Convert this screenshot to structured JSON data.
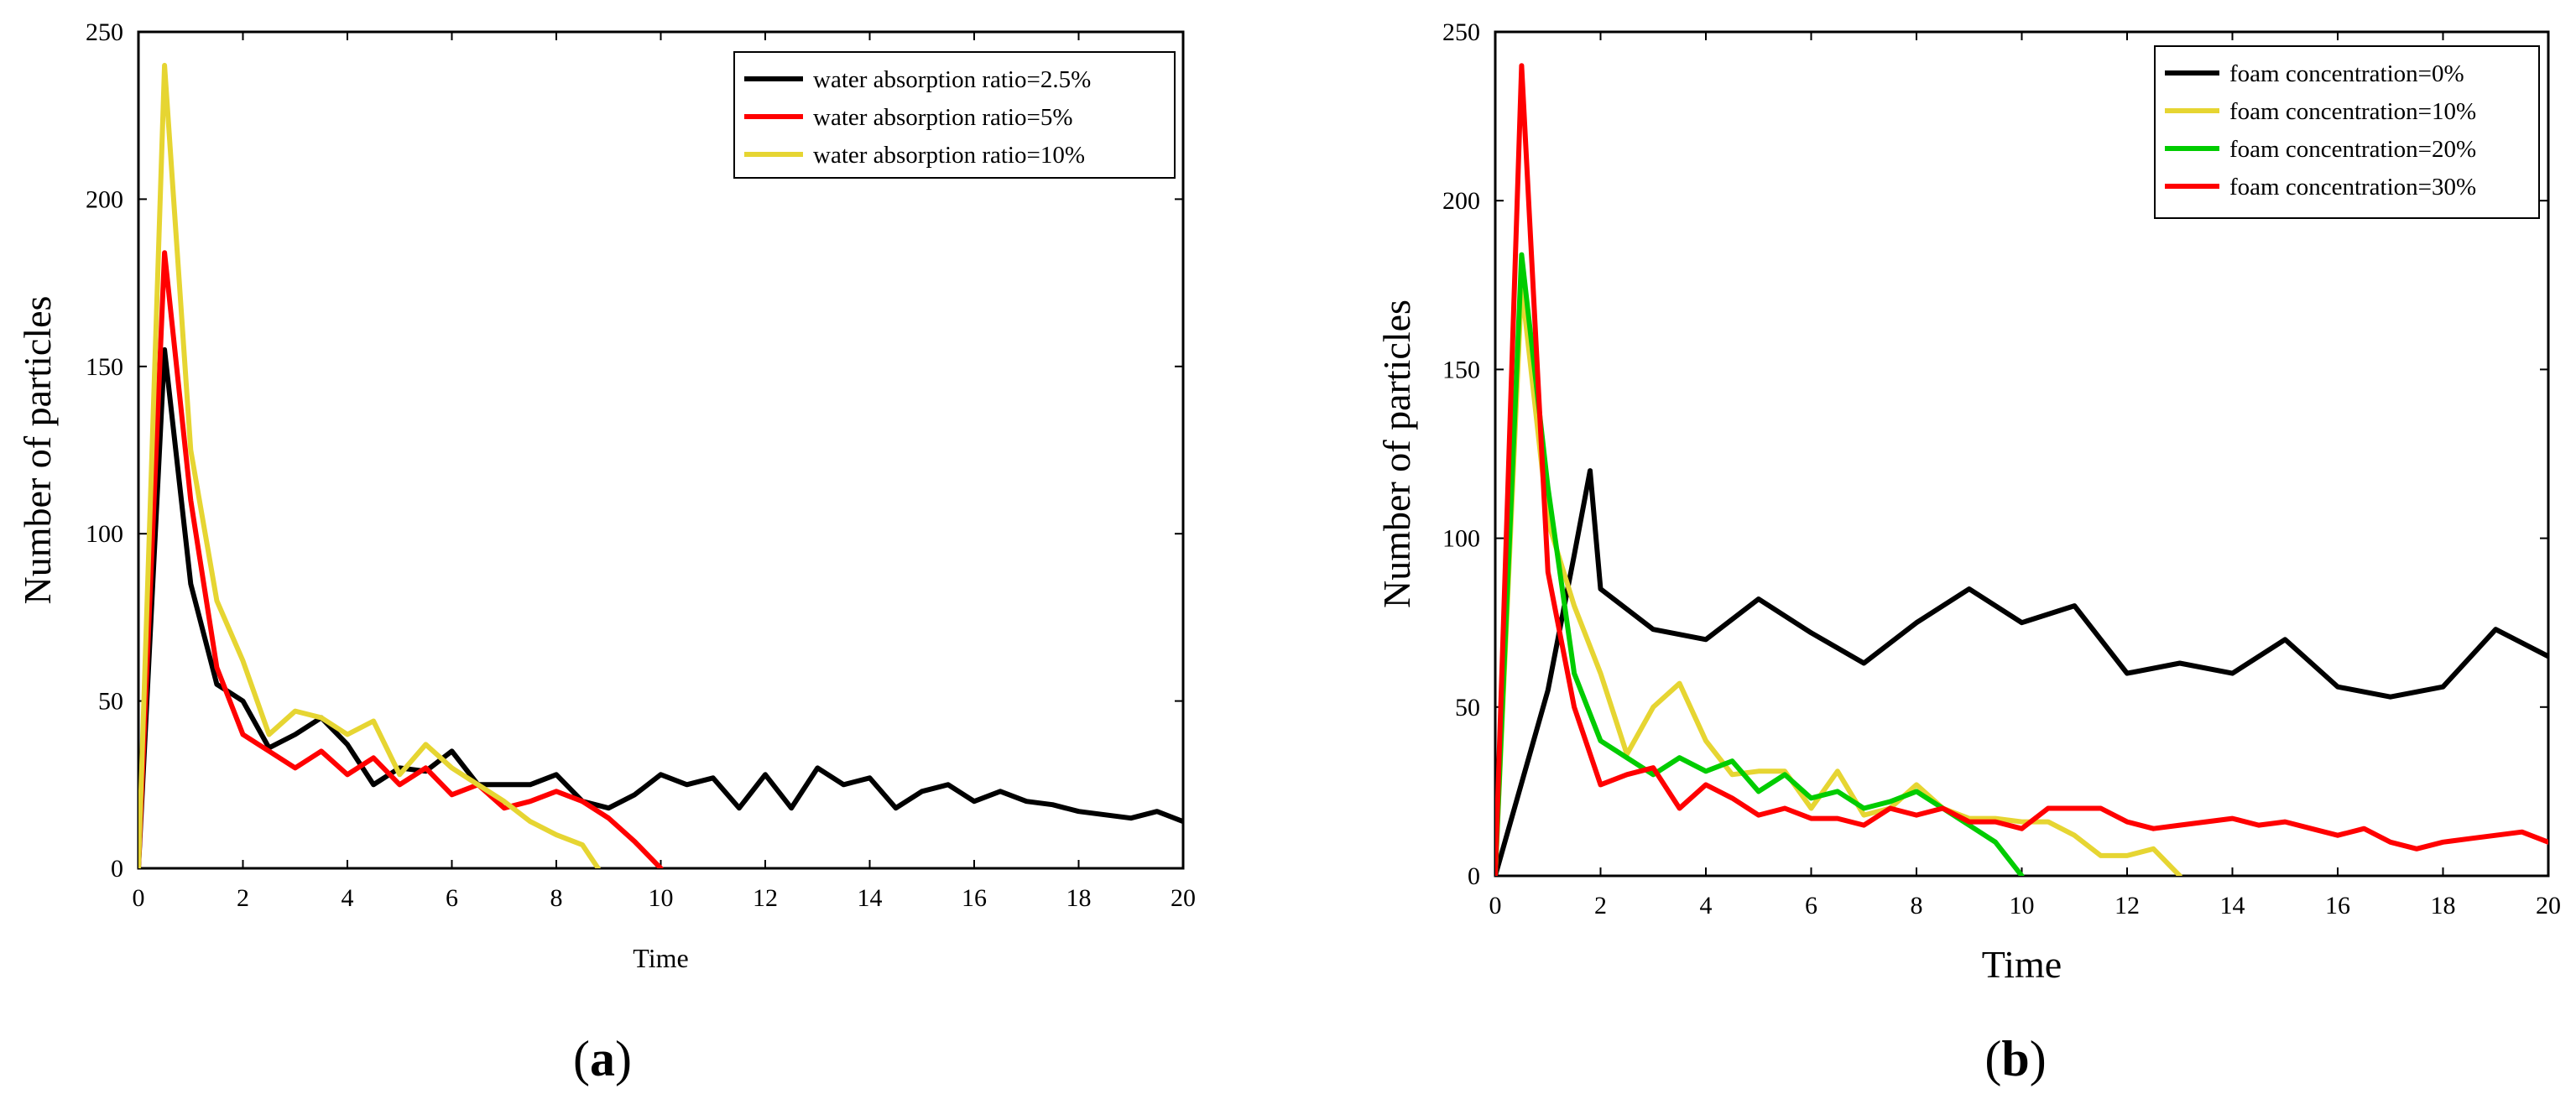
{
  "chart_data": [
    {
      "type": "line",
      "panel": "(a)",
      "panel_letter": "a",
      "xlabel": "Time",
      "ylabel": "Number of particles",
      "xlim": [
        0,
        20
      ],
      "ylim": [
        0,
        250
      ],
      "xticks": [
        0,
        2,
        4,
        6,
        8,
        10,
        12,
        14,
        16,
        18,
        20
      ],
      "yticks": [
        0,
        50,
        100,
        150,
        200,
        250
      ],
      "legend_position": "top-right",
      "series": [
        {
          "name": "water absorption ratio=2.5%",
          "color": "#000000",
          "x": [
            0,
            0.5,
            1,
            1.5,
            1.8,
            2,
            2.5,
            3,
            3.5,
            4,
            4.5,
            5,
            5.5,
            6,
            6.5,
            7,
            7.5,
            8,
            8.5,
            9,
            9.5,
            10,
            10.5,
            11,
            11.5,
            12,
            12.5,
            13,
            13.5,
            14,
            14.5,
            15,
            15.5,
            16,
            16.5,
            17,
            17.5,
            18,
            18.5,
            19,
            19.5,
            20
          ],
          "y": [
            0,
            155,
            85,
            55,
            52,
            50,
            36,
            40,
            45,
            37,
            25,
            30,
            29,
            35,
            25,
            25,
            25,
            28,
            20,
            18,
            22,
            28,
            25,
            27,
            18,
            28,
            18,
            30,
            25,
            27,
            18,
            23,
            25,
            20,
            23,
            20,
            19,
            17,
            16,
            15,
            17,
            14
          ]
        },
        {
          "name": "water absorption ratio=5%",
          "color": "#ff0000",
          "x": [
            0,
            0.5,
            1,
            1.5,
            2,
            2.5,
            3,
            3.5,
            4,
            4.5,
            5,
            5.5,
            6,
            6.5,
            7,
            7.5,
            8,
            8.5,
            9,
            9.5,
            10
          ],
          "y": [
            0,
            184,
            110,
            60,
            40,
            35,
            30,
            35,
            28,
            33,
            25,
            30,
            22,
            25,
            18,
            20,
            23,
            20,
            15,
            8,
            0
          ]
        },
        {
          "name": "water absorption ratio=10%",
          "color": "#e6d532",
          "x": [
            0,
            0.5,
            1,
            1.5,
            2,
            2.5,
            3,
            3.5,
            4,
            4.5,
            5,
            5.5,
            6,
            6.5,
            7,
            7.5,
            8,
            8.5,
            8.8
          ],
          "y": [
            0,
            240,
            125,
            80,
            62,
            40,
            47,
            45,
            40,
            44,
            28,
            37,
            30,
            25,
            20,
            14,
            10,
            7,
            0
          ]
        }
      ]
    },
    {
      "type": "line",
      "panel": "(b)",
      "panel_letter": "b",
      "xlabel": "Time",
      "ylabel": "Number of particles",
      "xlim": [
        0,
        20
      ],
      "ylim": [
        0,
        250
      ],
      "xticks": [
        0,
        2,
        4,
        6,
        8,
        10,
        12,
        14,
        16,
        18,
        20
      ],
      "yticks": [
        0,
        50,
        100,
        150,
        200,
        250
      ],
      "legend_position": "top-right",
      "series": [
        {
          "name": "foam concentration=0%",
          "color": "#000000",
          "x": [
            0,
            1,
            1.5,
            1.8,
            2,
            3,
            4,
            5,
            6,
            7,
            8,
            9,
            10,
            11,
            12,
            13,
            14,
            15,
            16,
            17,
            18,
            19,
            20
          ],
          "y": [
            0,
            55,
            95,
            120,
            85,
            73,
            70,
            82,
            72,
            63,
            75,
            85,
            75,
            80,
            60,
            63,
            60,
            70,
            56,
            53,
            56,
            73,
            65
          ]
        },
        {
          "name": "foam concentration=10%",
          "color": "#e6d532",
          "x": [
            0,
            0.5,
            1,
            1.5,
            2,
            2.5,
            3,
            3.5,
            4,
            4.5,
            5,
            5.5,
            6,
            6.5,
            7,
            7.5,
            8,
            8.5,
            9,
            9.5,
            10,
            10.5,
            11,
            11.5,
            12,
            12.5,
            13
          ],
          "y": [
            0,
            175,
            105,
            80,
            60,
            36,
            50,
            57,
            40,
            30,
            31,
            31,
            20,
            31,
            18,
            20,
            27,
            20,
            17,
            17,
            16,
            16,
            12,
            6,
            6,
            8,
            0
          ]
        },
        {
          "name": "foam concentration=20%",
          "color": "#00cc00",
          "x": [
            0,
            0.5,
            1,
            1.5,
            2,
            2.5,
            3,
            3.5,
            4,
            4.5,
            5,
            5.5,
            6,
            6.5,
            7,
            7.5,
            8,
            8.5,
            9,
            9.5,
            10
          ],
          "y": [
            0,
            184,
            115,
            60,
            40,
            35,
            30,
            35,
            31,
            34,
            25,
            30,
            23,
            25,
            20,
            22,
            25,
            20,
            15,
            10,
            0
          ]
        },
        {
          "name": "foam concentration=30%",
          "color": "#ff0000",
          "x": [
            0,
            0.5,
            1,
            1.5,
            2,
            2.5,
            3,
            3.5,
            4,
            4.5,
            5,
            5.5,
            6,
            6.5,
            7,
            7.5,
            8,
            8.5,
            9,
            9.5,
            10,
            10.5,
            11,
            11.5,
            12,
            12.5,
            13,
            13.5,
            14,
            14.5,
            15,
            15.5,
            16,
            16.5,
            17,
            17.5,
            18,
            18.5,
            19,
            19.5,
            20
          ],
          "y": [
            0,
            240,
            90,
            50,
            27,
            30,
            32,
            20,
            27,
            23,
            18,
            20,
            17,
            17,
            15,
            20,
            18,
            20,
            16,
            16,
            14,
            20,
            20,
            20,
            16,
            14,
            15,
            16,
            17,
            15,
            16,
            14,
            12,
            14,
            10,
            8,
            10,
            11,
            12,
            13,
            10
          ]
        }
      ]
    }
  ]
}
